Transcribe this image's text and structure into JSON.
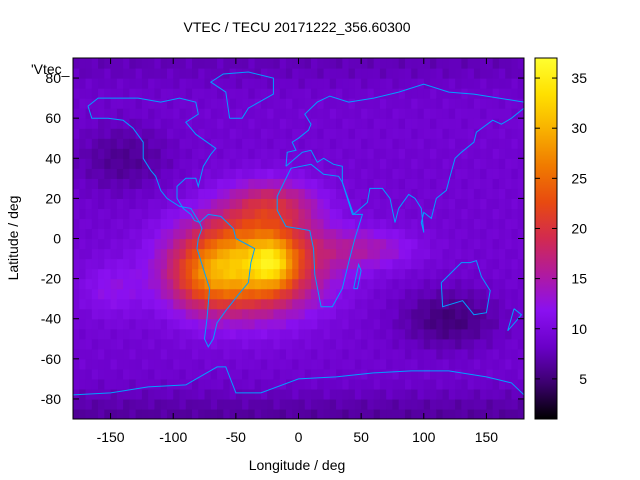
{
  "chart_data": {
    "type": "heatmap",
    "title": "VTEC / TECU 20171222_356.60300",
    "xlabel": "Longitude / deg",
    "ylabel": "Latitude / deg",
    "key_label": "'Vtec_",
    "xlim": [
      -180,
      180
    ],
    "ylim": [
      -90,
      90
    ],
    "xticks": [
      -150,
      -100,
      -50,
      0,
      50,
      100,
      150
    ],
    "yticks": [
      -80,
      -60,
      -40,
      -20,
      0,
      20,
      40,
      60,
      80
    ],
    "colorbar": {
      "range": [
        1,
        37
      ],
      "ticks": [
        5,
        10,
        15,
        20,
        25,
        30,
        35
      ],
      "palette": [
        "#000000",
        "#3c006f",
        "#6a00c8",
        "#8a10f0",
        "#b01aa0",
        "#d22a50",
        "#e84a10",
        "#f07a00",
        "#f8b000",
        "#ffe000",
        "#ffff30"
      ]
    },
    "background_tecu": 9,
    "anomalies": [
      {
        "name": "equatorial-anomaly-core",
        "lon": -40,
        "lat": -12,
        "sigma_lon": 55,
        "sigma_lat": 24,
        "amplitude_tecu": 21
      },
      {
        "name": "west-peak",
        "lon": -75,
        "lat": -20,
        "sigma_lon": 30,
        "sigma_lat": 16,
        "amplitude_tecu": 6
      },
      {
        "name": "north-lobe",
        "lon": -20,
        "lat": 18,
        "sigma_lon": 35,
        "sigma_lat": 12,
        "amplitude_tecu": 7
      },
      {
        "name": "central-peak",
        "lon": -20,
        "lat": -12,
        "sigma_lon": 16,
        "sigma_lat": 12,
        "amplitude_tecu": 8
      },
      {
        "name": "east-extension",
        "lon": 55,
        "lat": -5,
        "sigma_lon": 40,
        "sigma_lat": 10,
        "amplitude_tecu": 5
      },
      {
        "name": "pacific-arm",
        "lon": -150,
        "lat": -25,
        "sigma_lon": 25,
        "sigma_lat": 14,
        "amplitude_tecu": 3
      },
      {
        "name": "south-pacific-low",
        "lon": 120,
        "lat": -40,
        "sigma_lon": 40,
        "sigma_lat": 15,
        "amplitude_tecu": -4
      },
      {
        "name": "north-pacific-low",
        "lon": -140,
        "lat": 40,
        "sigma_lon": 40,
        "sigma_lat": 18,
        "amplitude_tecu": -3
      }
    ],
    "coastline_color": "#00a0ff",
    "continents": [
      {
        "name": "north-america",
        "points": [
          [
            -168,
            66
          ],
          [
            -160,
            70
          ],
          [
            -140,
            70
          ],
          [
            -128,
            70
          ],
          [
            -110,
            68
          ],
          [
            -95,
            70
          ],
          [
            -82,
            68
          ],
          [
            -80,
            62
          ],
          [
            -90,
            58
          ],
          [
            -82,
            52
          ],
          [
            -66,
            45
          ],
          [
            -70,
            42
          ],
          [
            -76,
            36
          ],
          [
            -80,
            26
          ],
          [
            -82,
            30
          ],
          [
            -90,
            30
          ],
          [
            -97,
            26
          ],
          [
            -97,
            20
          ],
          [
            -92,
            15
          ],
          [
            -86,
            12
          ],
          [
            -83,
            9
          ],
          [
            -79,
            8
          ],
          [
            -86,
            15
          ],
          [
            -95,
            16
          ],
          [
            -105,
            20
          ],
          [
            -110,
            24
          ],
          [
            -114,
            31
          ],
          [
            -118,
            34
          ],
          [
            -124,
            40
          ],
          [
            -124,
            48
          ],
          [
            -132,
            55
          ],
          [
            -140,
            59
          ],
          [
            -152,
            60
          ],
          [
            -165,
            60
          ],
          [
            -168,
            66
          ]
        ]
      },
      {
        "name": "greenland",
        "points": [
          [
            -55,
            60
          ],
          [
            -45,
            60
          ],
          [
            -40,
            65
          ],
          [
            -20,
            72
          ],
          [
            -20,
            80
          ],
          [
            -40,
            83
          ],
          [
            -60,
            82
          ],
          [
            -70,
            78
          ],
          [
            -58,
            73
          ],
          [
            -55,
            60
          ]
        ]
      },
      {
        "name": "south-america",
        "points": [
          [
            -79,
            8
          ],
          [
            -72,
            12
          ],
          [
            -62,
            11
          ],
          [
            -52,
            5
          ],
          [
            -50,
            0
          ],
          [
            -35,
            -5
          ],
          [
            -38,
            -12
          ],
          [
            -40,
            -22
          ],
          [
            -48,
            -28
          ],
          [
            -58,
            -36
          ],
          [
            -65,
            -42
          ],
          [
            -68,
            -50
          ],
          [
            -72,
            -54
          ],
          [
            -75,
            -50
          ],
          [
            -73,
            -40
          ],
          [
            -71,
            -25
          ],
          [
            -76,
            -15
          ],
          [
            -81,
            -5
          ],
          [
            -80,
            0
          ],
          [
            -77,
            5
          ],
          [
            -79,
            8
          ]
        ]
      },
      {
        "name": "eurasia",
        "points": [
          [
            -10,
            36
          ],
          [
            -9,
            43
          ],
          [
            -2,
            44
          ],
          [
            -5,
            48
          ],
          [
            0,
            50
          ],
          [
            8,
            54
          ],
          [
            10,
            57
          ],
          [
            5,
            62
          ],
          [
            15,
            68
          ],
          [
            25,
            71
          ],
          [
            40,
            68
          ],
          [
            60,
            70
          ],
          [
            80,
            73
          ],
          [
            100,
            77
          ],
          [
            120,
            73
          ],
          [
            140,
            72
          ],
          [
            160,
            70
          ],
          [
            180,
            68
          ],
          [
            180,
            65
          ],
          [
            170,
            60
          ],
          [
            162,
            57
          ],
          [
            155,
            59
          ],
          [
            142,
            53
          ],
          [
            140,
            48
          ],
          [
            130,
            43
          ],
          [
            125,
            40
          ],
          [
            121,
            31
          ],
          [
            118,
            24
          ],
          [
            110,
            20
          ],
          [
            106,
            10
          ],
          [
            100,
            13
          ],
          [
            98,
            8
          ],
          [
            100,
            3
          ],
          [
            98,
            15
          ],
          [
            93,
            20
          ],
          [
            88,
            22
          ],
          [
            80,
            15
          ],
          [
            77,
            8
          ],
          [
            73,
            20
          ],
          [
            67,
            25
          ],
          [
            57,
            25
          ],
          [
            55,
            18
          ],
          [
            44,
            12
          ],
          [
            35,
            28
          ],
          [
            35,
            36
          ],
          [
            28,
            37
          ],
          [
            20,
            40
          ],
          [
            15,
            38
          ],
          [
            10,
            44
          ],
          [
            3,
            43
          ],
          [
            -10,
            36
          ]
        ]
      },
      {
        "name": "africa",
        "points": [
          [
            -17,
            21
          ],
          [
            -10,
            30
          ],
          [
            -6,
            35
          ],
          [
            10,
            37
          ],
          [
            20,
            32
          ],
          [
            32,
            31
          ],
          [
            35,
            28
          ],
          [
            43,
            12
          ],
          [
            51,
            12
          ],
          [
            45,
            0
          ],
          [
            40,
            -12
          ],
          [
            35,
            -25
          ],
          [
            27,
            -34
          ],
          [
            18,
            -34
          ],
          [
            13,
            -18
          ],
          [
            12,
            -5
          ],
          [
            9,
            4
          ],
          [
            0,
            5
          ],
          [
            -10,
            6
          ],
          [
            -17,
            14
          ],
          [
            -17,
            21
          ]
        ]
      },
      {
        "name": "australia",
        "points": [
          [
            114,
            -22
          ],
          [
            122,
            -17
          ],
          [
            130,
            -12
          ],
          [
            137,
            -12
          ],
          [
            142,
            -11
          ],
          [
            146,
            -19
          ],
          [
            153,
            -26
          ],
          [
            150,
            -37
          ],
          [
            140,
            -38
          ],
          [
            131,
            -31
          ],
          [
            115,
            -34
          ],
          [
            114,
            -22
          ]
        ]
      },
      {
        "name": "madagascar",
        "points": [
          [
            44,
            -25
          ],
          [
            48,
            -13
          ],
          [
            50,
            -16
          ],
          [
            47,
            -25
          ],
          [
            44,
            -25
          ]
        ]
      },
      {
        "name": "new-zealand",
        "points": [
          [
            172,
            -35
          ],
          [
            178,
            -38
          ],
          [
            174,
            -41
          ],
          [
            167,
            -46
          ],
          [
            172,
            -35
          ]
        ]
      },
      {
        "name": "antarctica",
        "points": [
          [
            -180,
            -78
          ],
          [
            -150,
            -77
          ],
          [
            -120,
            -74
          ],
          [
            -90,
            -73
          ],
          [
            -65,
            -64
          ],
          [
            -58,
            -64
          ],
          [
            -50,
            -77
          ],
          [
            -30,
            -77
          ],
          [
            0,
            -70
          ],
          [
            30,
            -69
          ],
          [
            60,
            -67
          ],
          [
            90,
            -66
          ],
          [
            120,
            -66
          ],
          [
            150,
            -69
          ],
          [
            170,
            -72
          ],
          [
            180,
            -78
          ]
        ]
      }
    ]
  }
}
